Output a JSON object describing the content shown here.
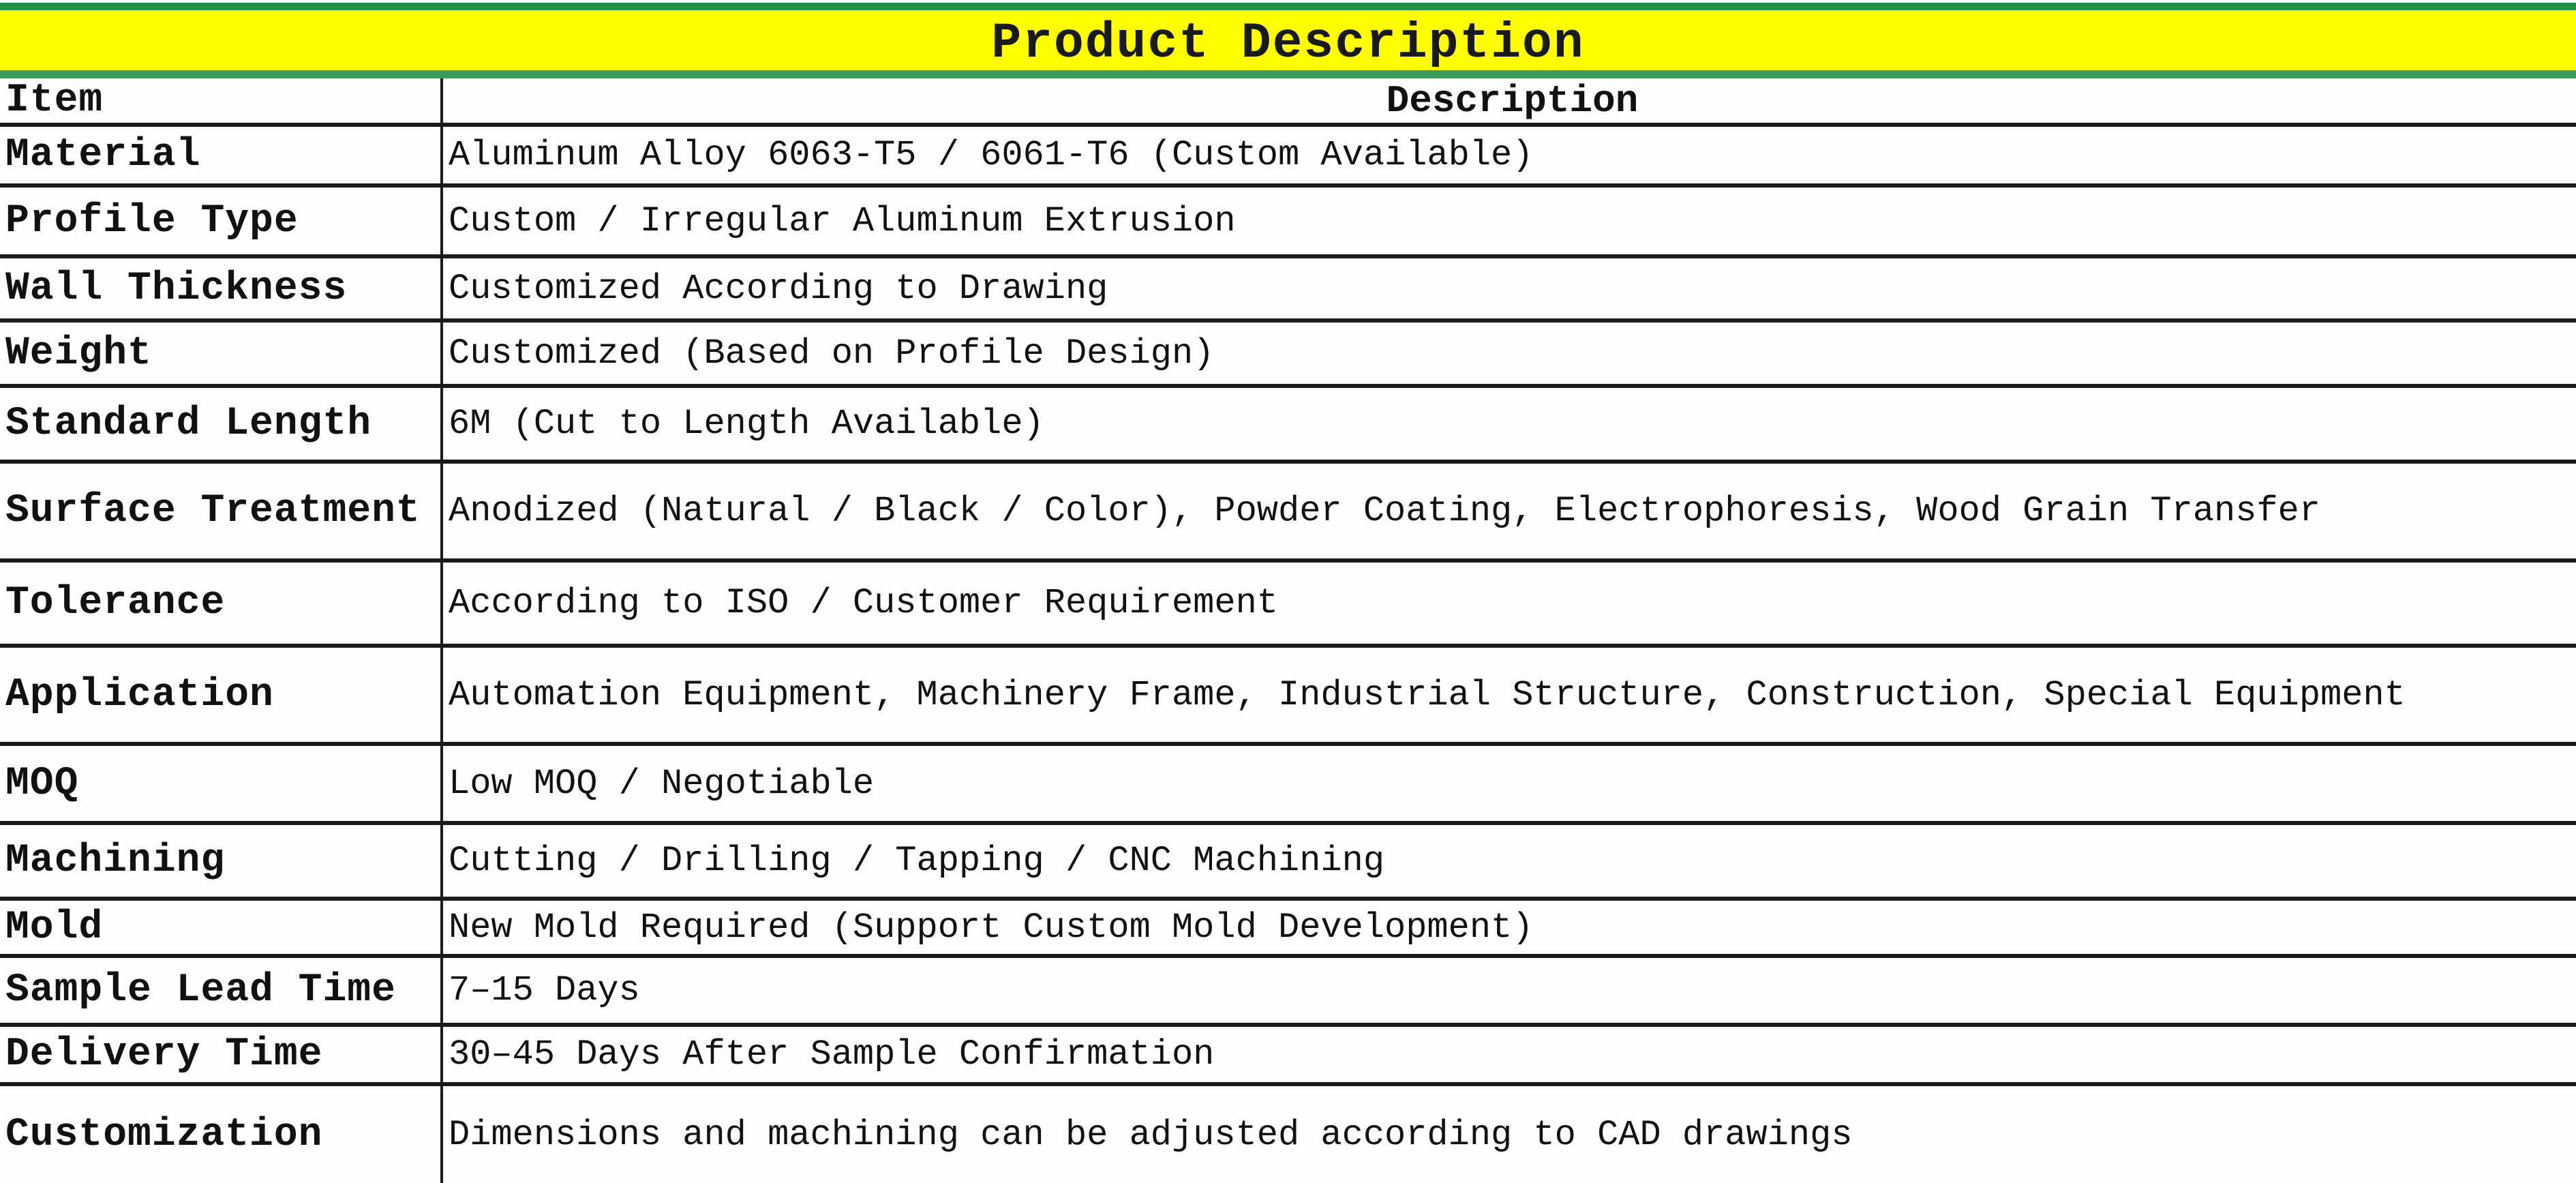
{
  "title": "Product Description",
  "colors": {
    "title_bg": "#ffff00",
    "title_border": "#1f9247"
  },
  "header": {
    "item": "Item",
    "description": "Description"
  },
  "rows": [
    {
      "item": "Material",
      "description": "Aluminum Alloy 6063-T5 / 6061-T6 (Custom Available)"
    },
    {
      "item": "Profile Type",
      "description": "Custom / Irregular Aluminum Extrusion"
    },
    {
      "item": "Wall Thickness",
      "description": "Customized According to Drawing"
    },
    {
      "item": "Weight",
      "description": "Customized (Based on Profile Design)"
    },
    {
      "item": "Standard Length",
      "description": "6M (Cut to Length Available)"
    },
    {
      "item": "Surface Treatment",
      "description": "Anodized (Natural / Black / Color), Powder Coating, Electrophoresis, Wood Grain Transfer"
    },
    {
      "item": "Tolerance",
      "description": "According to ISO / Customer Requirement"
    },
    {
      "item": "Application",
      "description": "Automation Equipment, Machinery Frame, Industrial Structure, Construction, Special Equipment"
    },
    {
      "item": "MOQ",
      "description": "Low MOQ / Negotiable"
    },
    {
      "item": "Machining",
      "description": "Cutting / Drilling / Tapping / CNC Machining"
    },
    {
      "item": "Mold",
      "description": "New Mold Required (Support Custom Mold Development)"
    },
    {
      "item": "Sample Lead Time",
      "description": "7–15 Days"
    },
    {
      "item": "Delivery Time",
      "description": "30–45 Days After Sample Confirmation"
    },
    {
      "item": "Customization",
      "description": "Dimensions and machining can be adjusted according to CAD drawings"
    }
  ]
}
